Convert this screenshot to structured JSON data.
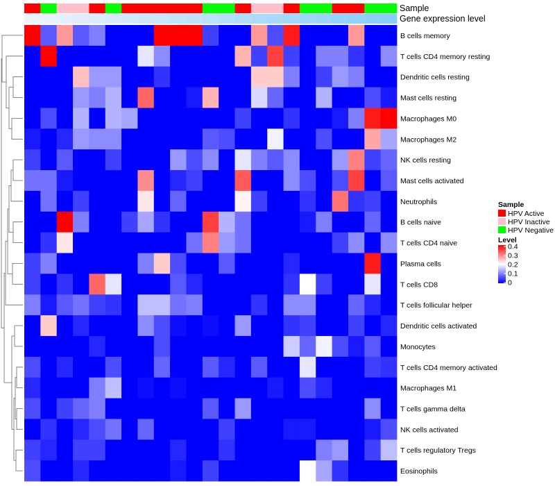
{
  "chart_data": {
    "type": "heatmap",
    "annotation_tracks": [
      "Sample",
      "Gene expression level"
    ],
    "rows": [
      "B cells memory",
      "T cells CD4 memory resting",
      "Dendritic cells resting",
      "Mast cells resting",
      "Macrophages M0",
      "Macrophages M2",
      "NK cells resting",
      "Mast cells activated",
      "Neutrophils",
      "B cells naive",
      "T cells CD4 naive",
      "Plasma cells",
      "T cells CD8",
      "T cells follicular helper",
      "Dendritic cells activated",
      "Monocytes",
      "T cells CD4 memory activated",
      "Macrophages M1",
      "T cells gamma delta",
      "NK cells activated",
      "T cells regulatory  Tregs",
      "Eosinophils"
    ],
    "sample_groups": [
      "Active",
      "Negative",
      "Inactive",
      "Inactive",
      "Active",
      "Negative",
      "Active",
      "Active",
      "Active",
      "Active",
      "Active",
      "Negative",
      "Negative",
      "Active",
      "Inactive",
      "Inactive",
      "Active",
      "Negative",
      "Negative",
      "Active",
      "Active",
      "Negative",
      "Negative"
    ],
    "expression_levels": [
      0.0,
      0.05,
      0.09,
      0.14,
      0.18,
      0.23,
      0.27,
      0.32,
      0.36,
      0.41,
      0.45,
      0.5,
      0.55,
      0.59,
      0.64,
      0.68,
      0.73,
      0.77,
      0.82,
      0.86,
      0.91,
      0.95,
      1.0
    ],
    "values": [
      [
        0.4,
        0.07,
        0.28,
        0.07,
        0.1,
        0.0,
        0.0,
        0.0,
        0.4,
        0.4,
        0.4,
        0.05,
        0.0,
        0.0,
        0.28,
        0.06,
        0.38,
        0.0,
        0.0,
        0.0,
        0.28,
        0.0,
        0.0
      ],
      [
        0.0,
        0.4,
        0.0,
        0.0,
        0.0,
        0.0,
        0.0,
        0.18,
        0.11,
        0.0,
        0.0,
        0.0,
        0.0,
        0.26,
        0.05,
        0.35,
        0.05,
        0.0,
        0.1,
        0.1,
        0.04,
        0.0,
        0.11
      ],
      [
        0.0,
        0.0,
        0.0,
        0.25,
        0.12,
        0.12,
        0.0,
        0.0,
        0.04,
        0.0,
        0.0,
        0.0,
        0.0,
        0.0,
        0.24,
        0.24,
        0.1,
        0.0,
        0.05,
        0.12,
        0.1,
        0.0,
        0.0
      ],
      [
        0.0,
        0.0,
        0.0,
        0.12,
        0.1,
        0.14,
        0.0,
        0.32,
        0.0,
        0.0,
        0.02,
        0.26,
        0.0,
        0.0,
        0.17,
        0.08,
        0.0,
        0.0,
        0.14,
        0.0,
        0.0,
        0.06,
        0.02
      ],
      [
        0.0,
        0.06,
        0.0,
        0.14,
        0.0,
        0.14,
        0.13,
        0.0,
        0.0,
        0.0,
        0.0,
        0.0,
        0.0,
        0.05,
        0.0,
        0.0,
        0.04,
        0.0,
        0.0,
        0.02,
        0.1,
        0.38,
        0.4
      ],
      [
        0.02,
        0.0,
        0.03,
        0.12,
        0.11,
        0.11,
        0.0,
        0.0,
        0.0,
        0.0,
        0.0,
        0.07,
        0.06,
        0.0,
        0.0,
        0.19,
        0.0,
        0.0,
        0.06,
        0.0,
        0.0,
        0.27,
        0.13
      ],
      [
        0.05,
        0.0,
        0.07,
        0.0,
        0.0,
        0.05,
        0.0,
        0.0,
        0.0,
        0.12,
        0.06,
        0.11,
        0.0,
        0.18,
        0.1,
        0.07,
        0.11,
        0.0,
        0.0,
        0.12,
        0.3,
        0.05,
        0.08
      ],
      [
        0.09,
        0.09,
        0.02,
        0.0,
        0.0,
        0.0,
        0.0,
        0.29,
        0.0,
        0.03,
        0.05,
        0.0,
        0.0,
        0.33,
        0.0,
        0.0,
        0.11,
        0.06,
        0.0,
        0.06,
        0.35,
        0.0,
        0.07
      ],
      [
        0.0,
        0.09,
        0.0,
        0.05,
        0.0,
        0.0,
        0.0,
        0.22,
        0.0,
        0.08,
        0.0,
        0.0,
        0.0,
        0.21,
        0.05,
        0.0,
        0.0,
        0.04,
        0.0,
        0.31,
        0.04,
        0.05,
        0.0
      ],
      [
        0.0,
        0.0,
        0.4,
        0.1,
        0.0,
        0.0,
        0.05,
        0.13,
        0.04,
        0.0,
        0.0,
        0.35,
        0.14,
        0.09,
        0.0,
        0.0,
        0.0,
        0.02,
        0.1,
        0.0,
        0.0,
        0.08,
        0.0
      ],
      [
        0.0,
        0.04,
        0.22,
        0.0,
        0.0,
        0.0,
        0.0,
        0.0,
        0.0,
        0.0,
        0.09,
        0.3,
        0.12,
        0.09,
        0.0,
        0.0,
        0.0,
        0.0,
        0.0,
        0.05,
        0.11,
        0.0,
        0.11
      ],
      [
        0.05,
        0.1,
        0.0,
        0.0,
        0.0,
        0.0,
        0.0,
        0.1,
        0.24,
        0.06,
        0.0,
        0.0,
        0.07,
        0.0,
        0.0,
        0.0,
        0.03,
        0.0,
        0.0,
        0.0,
        0.0,
        0.38,
        0.0
      ],
      [
        0.05,
        0.0,
        0.04,
        0.0,
        0.32,
        0.18,
        0.0,
        0.0,
        0.0,
        0.07,
        0.03,
        0.0,
        0.0,
        0.0,
        0.0,
        0.0,
        0.04,
        0.2,
        0.05,
        0.0,
        0.0,
        0.18,
        0.0
      ],
      [
        0.1,
        0.02,
        0.07,
        0.09,
        0.05,
        0.04,
        0.0,
        0.15,
        0.15,
        0.09,
        0.1,
        0.0,
        0.0,
        0.0,
        0.04,
        0.0,
        0.11,
        0.11,
        0.0,
        0.0,
        0.08,
        0.03,
        0.0
      ],
      [
        0.0,
        0.24,
        0.0,
        0.03,
        0.0,
        0.0,
        0.0,
        0.11,
        0.06,
        0.01,
        0.0,
        0.01,
        0.0,
        0.12,
        0.0,
        0.0,
        0.04,
        0.05,
        0.0,
        0.0,
        0.05,
        0.0,
        0.03
      ],
      [
        0.0,
        0.0,
        0.0,
        0.0,
        0.03,
        0.0,
        0.0,
        0.0,
        0.06,
        0.0,
        0.0,
        0.0,
        0.0,
        0.0,
        0.0,
        0.0,
        0.16,
        0.08,
        0.19,
        0.06,
        0.02,
        0.07,
        0.0
      ],
      [
        0.06,
        0.0,
        0.03,
        0.0,
        0.0,
        0.06,
        0.0,
        0.0,
        0.08,
        0.0,
        0.0,
        0.07,
        0.03,
        0.0,
        0.07,
        0.0,
        0.0,
        0.18,
        0.0,
        0.0,
        0.0,
        0.05,
        0.04
      ],
      [
        0.03,
        0.0,
        0.0,
        0.0,
        0.1,
        0.15,
        0.0,
        0.01,
        0.0,
        0.01,
        0.0,
        0.0,
        0.0,
        0.0,
        0.0,
        0.02,
        0.0,
        0.06,
        0.03,
        0.0,
        0.0,
        0.0,
        0.0
      ],
      [
        0.06,
        0.0,
        0.05,
        0.08,
        0.1,
        0.0,
        0.0,
        0.0,
        0.0,
        0.0,
        0.0,
        0.07,
        0.0,
        0.12,
        0.0,
        0.0,
        0.0,
        0.0,
        0.0,
        0.0,
        0.0,
        0.11,
        0.0
      ],
      [
        0.0,
        0.04,
        0.0,
        0.03,
        0.06,
        0.09,
        0.0,
        0.08,
        0.0,
        0.0,
        0.0,
        0.0,
        0.05,
        0.0,
        0.0,
        0.0,
        0.02,
        0.02,
        0.0,
        0.0,
        0.0,
        0.02,
        0.06
      ],
      [
        0.05,
        0.03,
        0.0,
        0.05,
        0.05,
        0.0,
        0.0,
        0.0,
        0.0,
        0.03,
        0.0,
        0.0,
        0.04,
        0.0,
        0.0,
        0.0,
        0.0,
        0.0,
        0.1,
        0.12,
        0.0,
        0.05,
        0.15
      ],
      [
        0.06,
        0.0,
        0.0,
        0.03,
        0.0,
        0.0,
        0.0,
        0.0,
        0.0,
        0.02,
        0.0,
        0.05,
        0.0,
        0.0,
        0.0,
        0.0,
        0.0,
        0.2,
        0.13,
        0.04,
        0.0,
        0.0,
        0.0
      ]
    ],
    "color_scale": {
      "low": "#0000ff",
      "mid": "#ffffff",
      "high": "#ff0000",
      "min": 0,
      "mid_value": 0.2,
      "max": 0.4
    },
    "annotation_colors": {
      "Active": "#ff0000",
      "Inactive": "#ffc0cb",
      "Negative": "#00ff00",
      "expr_low": "#eef3fb",
      "expr_high": "#87cefa"
    },
    "legend": {
      "sample_title": "Sample",
      "sample_entries": [
        {
          "label": "HPV Active",
          "key": "Active"
        },
        {
          "label": "HPV Inactive",
          "key": "Inactive"
        },
        {
          "label": "HPV Negative",
          "key": "Negative"
        }
      ],
      "level_title": "Level",
      "level_ticks": [
        "0.4",
        "0.3",
        "0.2",
        "0.1",
        "0"
      ],
      "placement": "right"
    }
  }
}
